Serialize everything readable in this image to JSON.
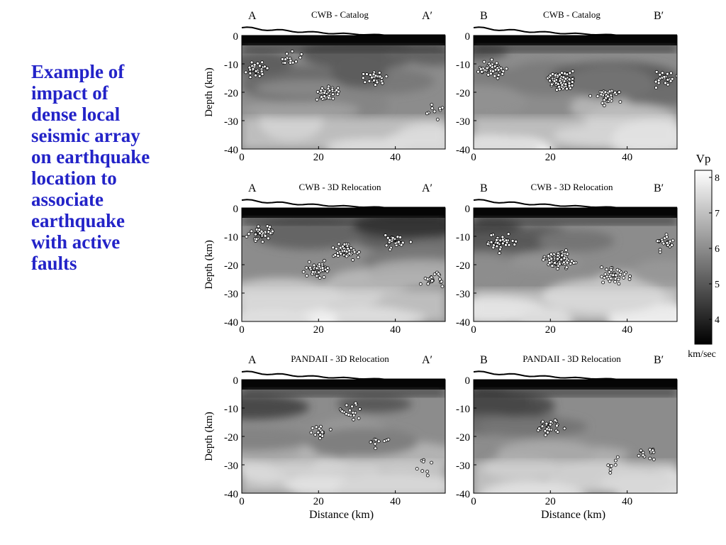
{
  "caption": "Example of\nimpact of\ndense local\nseismic array\non earthquake\nlocation to\nassociate\nearthquake\nwith active\nfaults",
  "panels": [
    {
      "title": "CWB - Catalog",
      "left_label": "A",
      "right_label": "A′",
      "dist": [
        [
          4,
          -12,
          30
        ],
        [
          12,
          -8,
          15
        ],
        [
          22,
          -20,
          40
        ],
        [
          35,
          -15,
          30
        ],
        [
          50,
          -27,
          12
        ]
      ]
    },
    {
      "title": "CWB - Catalog",
      "left_label": "B",
      "right_label": "B′",
      "dist": [
        [
          5,
          -12,
          50
        ],
        [
          23,
          -16,
          120
        ],
        [
          35,
          -22,
          40
        ],
        [
          50,
          -15,
          25
        ]
      ]
    },
    {
      "title": "CWB - 3D Relocation",
      "left_label": "A",
      "right_label": "A′",
      "dist": [
        [
          5,
          -9,
          40
        ],
        [
          20,
          -22,
          50
        ],
        [
          27,
          -15,
          50
        ],
        [
          40,
          -12,
          30
        ],
        [
          50,
          -25,
          20
        ]
      ]
    },
    {
      "title": "CWB - 3D Relocation",
      "left_label": "B",
      "right_label": "B′",
      "dist": [
        [
          7,
          -12,
          50
        ],
        [
          22,
          -18,
          100
        ],
        [
          37,
          -24,
          40
        ],
        [
          50,
          -12,
          25
        ]
      ]
    },
    {
      "title": "PANDAII - 3D Relocation",
      "left_label": "A",
      "right_label": "A′",
      "dist": [
        [
          20,
          -18,
          16
        ],
        [
          28,
          -11,
          18
        ],
        [
          35,
          -22,
          10
        ],
        [
          47,
          -30,
          8
        ]
      ]
    },
    {
      "title": "PANDAII - 3D Relocation",
      "left_label": "B",
      "right_label": "B′",
      "dist": [
        [
          20,
          -17,
          30
        ],
        [
          45,
          -25,
          15
        ],
        [
          35,
          -30,
          8
        ]
      ]
    }
  ],
  "axes": {
    "y_label": "Depth (km)",
    "x_label": "Distance (km)",
    "y_ticks": [
      "0",
      "-10",
      "-20",
      "-30",
      "-40"
    ],
    "x_ticks": [
      "0",
      "20",
      "40"
    ]
  },
  "colorbar": {
    "title": "Vp",
    "unit": "km/sec",
    "ticks": [
      "8",
      "7",
      "6",
      "5",
      "4"
    ],
    "range": [
      3.3,
      8.2
    ]
  }
}
